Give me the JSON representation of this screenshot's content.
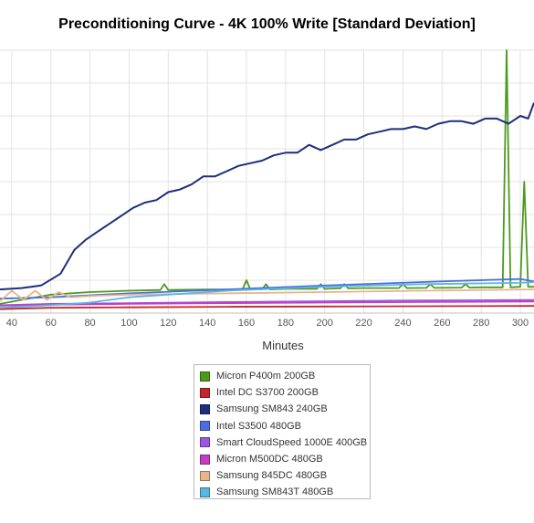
{
  "chart_data": {
    "type": "line",
    "title": "Preconditioning Curve - 4K 100% Write [Standard Deviation]",
    "xlabel": "Minutes",
    "ylabel": "",
    "x_ticks": [
      40,
      60,
      80,
      100,
      120,
      140,
      160,
      180,
      200,
      220,
      240,
      260,
      280,
      300
    ],
    "xlim": [
      34,
      307
    ],
    "ylim": [
      0,
      1
    ],
    "y_axis_note": "y tick labels are not visible in the image; values are relative 0-1 heights",
    "grid": true,
    "legend_position": "bottom-center",
    "series": [
      {
        "name": "Micron P400m 200GB",
        "color": "#4c9a1e",
        "x": [
          34,
          60,
          80,
          100,
          116,
          118,
          120,
          140,
          158,
          160,
          162,
          168,
          170,
          172,
          180,
          196,
          198,
          200,
          208,
          210,
          212,
          220,
          238,
          240,
          242,
          252,
          254,
          256,
          270,
          272,
          274,
          280,
          291,
          293,
          295,
          300,
          302,
          304,
          307
        ],
        "y": [
          0.035,
          0.07,
          0.08,
          0.085,
          0.088,
          0.11,
          0.088,
          0.09,
          0.09,
          0.125,
          0.09,
          0.09,
          0.11,
          0.09,
          0.092,
          0.092,
          0.11,
          0.092,
          0.094,
          0.11,
          0.094,
          0.095,
          0.095,
          0.11,
          0.095,
          0.096,
          0.11,
          0.096,
          0.097,
          0.11,
          0.097,
          0.098,
          0.098,
          1.0,
          0.098,
          0.1,
          0.5,
          0.1,
          0.1
        ]
      },
      {
        "name": "Intel DC S3700 200GB",
        "color": "#c0282a",
        "x": [
          34,
          60,
          100,
          150,
          200,
          250,
          307
        ],
        "y": [
          0.015,
          0.02,
          0.022,
          0.024,
          0.025,
          0.026,
          0.027
        ]
      },
      {
        "name": "Samsung SM843 240GB",
        "color": "#1c2f7a",
        "x": [
          34,
          45,
          55,
          65,
          72,
          78,
          84,
          90,
          96,
          102,
          108,
          114,
          120,
          126,
          132,
          138,
          144,
          150,
          156,
          162,
          168,
          174,
          180,
          186,
          192,
          198,
          204,
          210,
          216,
          222,
          228,
          234,
          240,
          246,
          252,
          258,
          264,
          270,
          276,
          282,
          288,
          294,
          300,
          304,
          307
        ],
        "y": [
          0.09,
          0.095,
          0.105,
          0.15,
          0.24,
          0.28,
          0.31,
          0.34,
          0.37,
          0.4,
          0.42,
          0.43,
          0.46,
          0.47,
          0.49,
          0.52,
          0.52,
          0.54,
          0.56,
          0.57,
          0.58,
          0.6,
          0.61,
          0.61,
          0.64,
          0.62,
          0.64,
          0.66,
          0.66,
          0.68,
          0.69,
          0.7,
          0.7,
          0.71,
          0.7,
          0.72,
          0.73,
          0.73,
          0.72,
          0.74,
          0.74,
          0.72,
          0.75,
          0.74,
          0.8
        ]
      },
      {
        "name": "Intel S3500 480GB",
        "color": "#4a6ee0",
        "x": [
          34,
          60,
          100,
          150,
          200,
          250,
          300,
          307
        ],
        "y": [
          0.055,
          0.06,
          0.075,
          0.09,
          0.105,
          0.118,
          0.13,
          0.12
        ]
      },
      {
        "name": "Smart CloudSpeed 1000E 400GB",
        "color": "#9b55e0",
        "x": [
          34,
          60,
          100,
          150,
          200,
          250,
          307
        ],
        "y": [
          0.03,
          0.035,
          0.038,
          0.042,
          0.045,
          0.048,
          0.05
        ]
      },
      {
        "name": "Micron M500DC 480GB",
        "color": "#c33dc2",
        "x": [
          34,
          60,
          100,
          150,
          200,
          250,
          307
        ],
        "y": [
          0.028,
          0.032,
          0.035,
          0.038,
          0.04,
          0.042,
          0.044
        ]
      },
      {
        "name": "Samsung 845DC 480GB",
        "color": "#e8b48a",
        "x": [
          34,
          40,
          46,
          52,
          58,
          64,
          70,
          80,
          100,
          150,
          200,
          250,
          307
        ],
        "y": [
          0.045,
          0.085,
          0.05,
          0.085,
          0.05,
          0.08,
          0.06,
          0.065,
          0.07,
          0.075,
          0.08,
          0.085,
          0.09
        ]
      },
      {
        "name": "Samsung SM843T 480GB",
        "color": "#5ab6e3",
        "x": [
          34,
          60,
          80,
          100,
          150,
          200,
          250,
          300,
          307
        ],
        "y": [
          0.02,
          0.03,
          0.04,
          0.06,
          0.085,
          0.1,
          0.11,
          0.115,
          0.118
        ]
      }
    ]
  }
}
